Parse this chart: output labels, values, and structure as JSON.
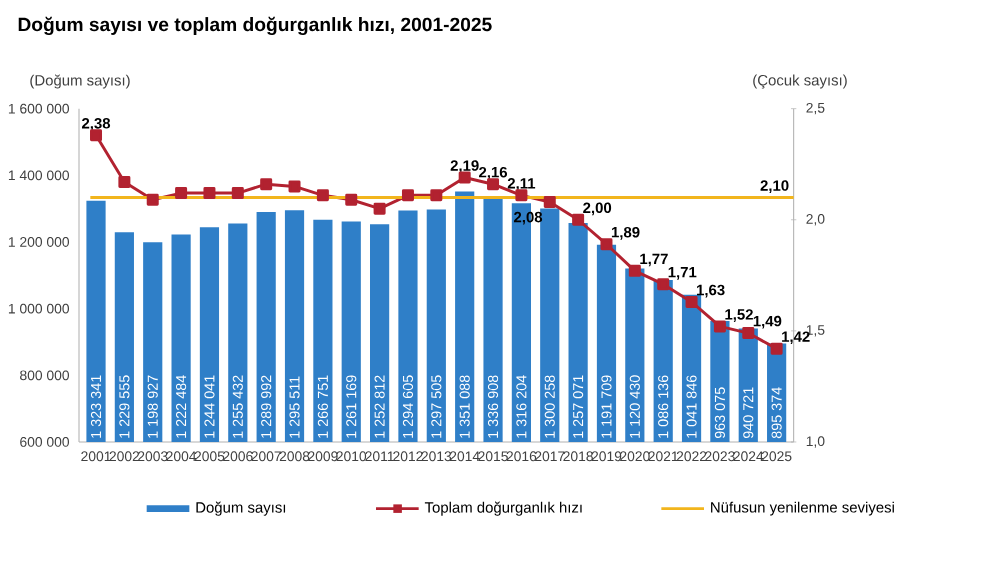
{
  "chart_data": {
    "type": "bar",
    "title": "Doğum sayısı ve toplam doğurganlık hızı, 2001-2025",
    "ylabel": "(Doğum sayısı)",
    "y2label": "(Çocuk sayısı)",
    "categories": [
      "2001",
      "2002",
      "2003",
      "2004",
      "2005",
      "2006",
      "2007",
      "2008",
      "2009",
      "2010",
      "2011",
      "2012",
      "2013",
      "2014",
      "2015",
      "2016",
      "2017",
      "2018",
      "2019",
      "2020",
      "2021",
      "2022",
      "2023",
      "2024",
      "2025"
    ],
    "series": [
      {
        "name": "Doğum sayısı",
        "color": "#2f7fc8",
        "values": [
          1323341,
          1229555,
          1198927,
          1222484,
          1244041,
          1255432,
          1289992,
          1295511,
          1266751,
          1261169,
          1252812,
          1294605,
          1297505,
          1351088,
          1336908,
          1316204,
          1300258,
          1257071,
          1191709,
          1120430,
          1086136,
          1041846,
          963075,
          940721,
          895374
        ],
        "value_labels": [
          "1 323 341",
          "1 229 555",
          "1 198 927",
          "1 222 484",
          "1 244 041",
          "1 255 432",
          "1 289 992",
          "1 295 511",
          "1 266 751",
          "1 261 169",
          "1 252 812",
          "1 294 605",
          "1 297 505",
          "1 351 088",
          "1 336 908",
          "1 316 204",
          "1 300 258",
          "1 257 071",
          "1 191 709",
          "1 120 430",
          "1 086 136",
          "1 041 846",
          "963 075",
          "940 721",
          "895 374"
        ]
      },
      {
        "name": "Toplam doğurganlık hızı",
        "type": "line",
        "axis": "y2",
        "color": "#b22230",
        "marker": "square",
        "values": [
          2.38,
          2.17,
          2.09,
          2.12,
          2.12,
          2.12,
          2.16,
          2.15,
          2.11,
          2.09,
          2.05,
          2.11,
          2.11,
          2.19,
          2.16,
          2.11,
          2.08,
          2.0,
          1.89,
          1.77,
          1.71,
          1.63,
          1.52,
          1.49,
          1.42
        ],
        "value_labels": [
          "2,38",
          null,
          null,
          null,
          null,
          null,
          null,
          null,
          null,
          null,
          null,
          null,
          null,
          "2,19",
          "2,16",
          "2,11",
          "2,08",
          "2,00",
          "1,89",
          "1,77",
          "1,71",
          "1,63",
          "1,52",
          "1,49",
          "1,42"
        ]
      }
    ],
    "ylim": [
      600000,
      1600000
    ],
    "yticks": [
      {
        "value": 600000,
        "label": "600 000"
      },
      {
        "value": 800000,
        "label": "800 000"
      },
      {
        "value": 1000000,
        "label": "1 000 000"
      },
      {
        "value": 1200000,
        "label": "1 200 000"
      },
      {
        "value": 1400000,
        "label": "1 400 000"
      },
      {
        "value": 1600000,
        "label": "1 600 000"
      }
    ],
    "y2lim": [
      1.0,
      2.5
    ],
    "y2ticks": [
      {
        "value": 1.0,
        "label": "1,0"
      },
      {
        "value": 1.5,
        "label": "1,5"
      },
      {
        "value": 2.0,
        "label": "2,0"
      },
      {
        "value": 2.5,
        "label": "2,5"
      }
    ],
    "ref_lines": [
      {
        "axis": "y2",
        "value": 2.1,
        "label": "Nüfusun yenilenme seviyesi",
        "color": "#f2b51c"
      }
    ],
    "annotations": [
      "2,10"
    ],
    "legend": "bottom"
  }
}
